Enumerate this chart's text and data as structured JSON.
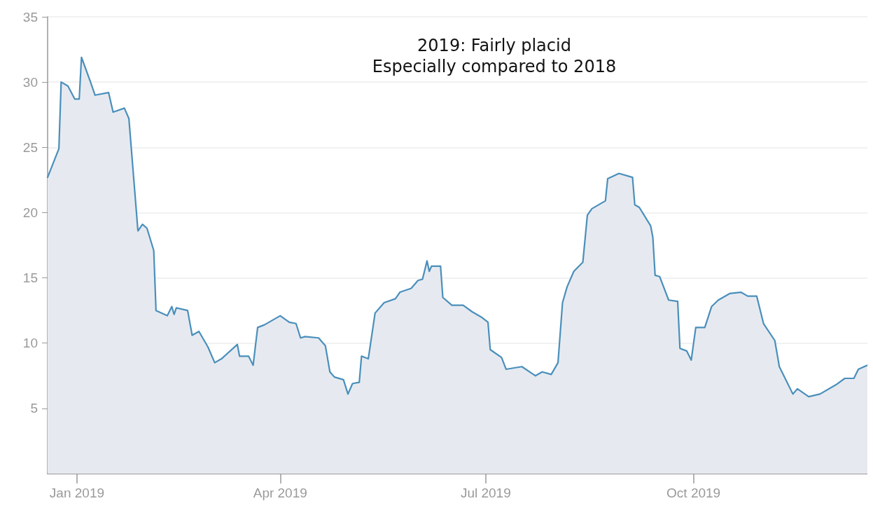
{
  "chart_data": {
    "type": "area",
    "annotations": [
      "2019: Fairly placid",
      "Especially compared to 2018"
    ],
    "x": [
      "2018-12-19",
      "2018-12-24",
      "2018-12-25",
      "2018-12-28",
      "2018-12-31",
      "2019-01-02",
      "2019-01-03",
      "2019-01-07",
      "2019-01-09",
      "2019-01-15",
      "2019-01-17",
      "2019-01-22",
      "2019-01-24",
      "2019-01-28",
      "2019-01-30",
      "2019-02-01",
      "2019-02-04",
      "2019-02-05",
      "2019-02-10",
      "2019-02-12",
      "2019-02-13",
      "2019-02-14",
      "2019-02-19",
      "2019-02-21",
      "2019-02-24",
      "2019-02-28",
      "2019-03-03",
      "2019-03-06",
      "2019-03-13",
      "2019-03-14",
      "2019-03-18",
      "2019-03-20",
      "2019-03-22",
      "2019-03-25",
      "2019-04-01",
      "2019-04-05",
      "2019-04-08",
      "2019-04-10",
      "2019-04-12",
      "2019-04-18",
      "2019-04-21",
      "2019-04-23",
      "2019-04-25",
      "2019-04-29",
      "2019-05-01",
      "2019-05-03",
      "2019-05-06",
      "2019-05-07",
      "2019-05-10",
      "2019-05-13",
      "2019-05-17",
      "2019-05-22",
      "2019-05-24",
      "2019-05-29",
      "2019-06-01",
      "2019-06-03",
      "2019-06-05",
      "2019-06-06",
      "2019-06-07",
      "2019-06-11",
      "2019-06-12",
      "2019-06-16",
      "2019-06-21",
      "2019-06-25",
      "2019-06-29",
      "2019-07-02",
      "2019-07-03",
      "2019-07-08",
      "2019-07-10",
      "2019-07-17",
      "2019-07-23",
      "2019-07-26",
      "2019-07-30",
      "2019-08-02",
      "2019-08-04",
      "2019-08-06",
      "2019-08-09",
      "2019-08-13",
      "2019-08-15",
      "2019-08-17",
      "2019-08-23",
      "2019-08-24",
      "2019-08-29",
      "2019-09-04",
      "2019-09-05",
      "2019-09-07",
      "2019-09-12",
      "2019-09-13",
      "2019-09-14",
      "2019-09-16",
      "2019-09-20",
      "2019-09-24",
      "2019-09-25",
      "2019-09-28",
      "2019-09-30",
      "2019-10-02",
      "2019-10-06",
      "2019-10-09",
      "2019-10-12",
      "2019-10-17",
      "2019-10-22",
      "2019-10-25",
      "2019-10-29",
      "2019-11-01",
      "2019-11-06",
      "2019-11-08",
      "2019-11-14",
      "2019-11-16",
      "2019-11-21",
      "2019-11-26",
      "2019-12-03",
      "2019-12-07",
      "2019-12-11",
      "2019-12-13",
      "2019-12-17"
    ],
    "series": [
      {
        "color": "#4a8fbb",
        "values": [
          22.7,
          24.9,
          30,
          29.7,
          28.7,
          28.7,
          31.9,
          30,
          29,
          29.2,
          27.7,
          28,
          27.2,
          18.6,
          19.1,
          18.8,
          17.1,
          12.5,
          12.1,
          12.8,
          12.2,
          12.7,
          12.5,
          10.6,
          10.9,
          9.7,
          8.5,
          8.8,
          9.9,
          9,
          9,
          8.3,
          11.2,
          11.4,
          12.1,
          11.6,
          11.5,
          10.4,
          10.5,
          10.4,
          9.8,
          7.8,
          7.4,
          7.2,
          6.1,
          6.9,
          7,
          9,
          8.8,
          12.3,
          13.1,
          13.4,
          13.9,
          14.2,
          14.8,
          14.9,
          16.3,
          15.5,
          15.9,
          15.9,
          13.5,
          12.9,
          12.9,
          12.4,
          12,
          11.6,
          9.5,
          8.9,
          8,
          8.2,
          7.5,
          7.8,
          7.6,
          8.5,
          13.1,
          14.3,
          15.5,
          16.2,
          19.8,
          20.3,
          20.9,
          22.6,
          23,
          22.7,
          20.6,
          20.4,
          19,
          18.1,
          15.2,
          15.1,
          13.3,
          13.2,
          9.6,
          9.4,
          8.7,
          11.2,
          11.2,
          12.8,
          13.3,
          13.8,
          13.9,
          13.6,
          13.6,
          11.5,
          10.2,
          8.2,
          6.1,
          6.5,
          5.9,
          6.1,
          6.8,
          7.3,
          7.3,
          8,
          8.3
        ]
      }
    ],
    "xlim": [
      "2018-12-19",
      "2019-12-17"
    ],
    "xticks": [
      {
        "value": "2019-01-01",
        "label": "Jan 2019"
      },
      {
        "value": "2019-04-01",
        "label": "Apr 2019"
      },
      {
        "value": "2019-07-01",
        "label": "Jul 2019"
      },
      {
        "value": "2019-10-01",
        "label": "Oct 2019"
      }
    ],
    "ylim": [
      0,
      35
    ],
    "yticks": [
      5,
      10,
      15,
      20,
      25,
      30,
      35
    ],
    "grid": "y",
    "marker": "none",
    "line_style": "solid"
  }
}
